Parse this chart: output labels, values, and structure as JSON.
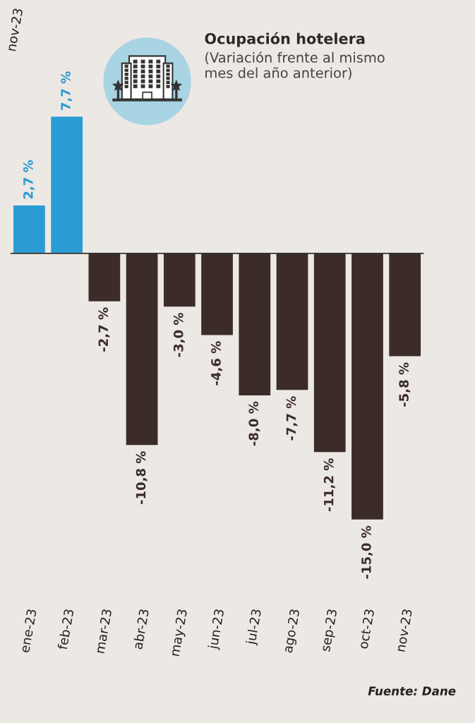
{
  "chart_data": {
    "type": "bar",
    "title": "Ocupación hotelera",
    "subtitle": "(Variación frente al mismo\nmes del año anterior)",
    "categories": [
      "ene-23",
      "feb-23",
      "mar-23",
      "abr-23",
      "may-23",
      "jun-23",
      "jul-23",
      "ago-23",
      "sep-23",
      "oct-23",
      "nov-23"
    ],
    "values": [
      2.7,
      7.7,
      -2.7,
      -10.8,
      -3.0,
      -4.6,
      -8.0,
      -7.7,
      -11.2,
      -15.0,
      -5.8
    ],
    "colors": [
      "#2a9bd4",
      "#2a9bd4",
      "#3b2b29",
      "#3b2b29",
      "#3b2b29",
      "#3b2b29",
      "#3b2b29",
      "#3b2b29",
      "#3b2b29",
      "#3b2b29",
      "#3b2b29"
    ],
    "value_labels": [
      "2,7 %",
      "7,7 %",
      "-2,7 %",
      "-10,8 %",
      "-3,0 %",
      "-4,6 %",
      "-8,0 %",
      "-7,7 %",
      "-11,2 %",
      "-15,0 %",
      "-5,8 %"
    ],
    "tick_labels": "x",
    "ref_lines": [
      {
        "axis": "y",
        "value": 0,
        "color": "#333333"
      }
    ],
    "annotations": [
      "Fuente: Dane",
      "nov-23"
    ]
  }
}
